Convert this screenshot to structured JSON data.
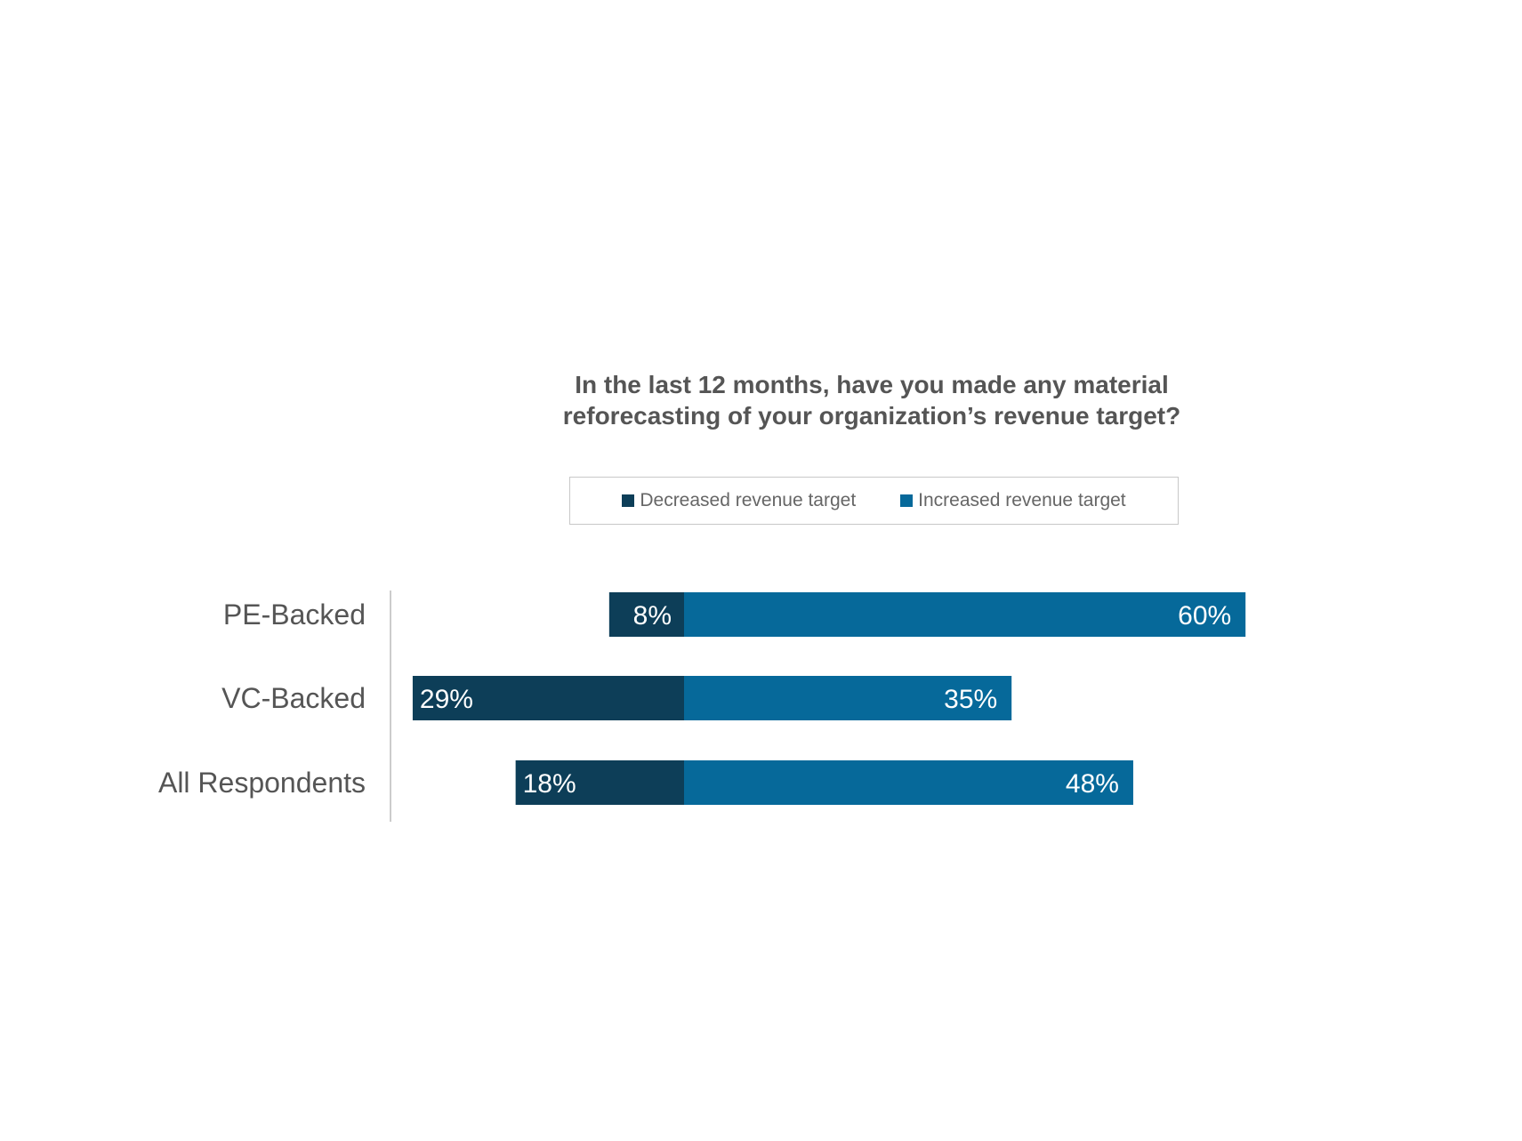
{
  "chart_data": {
    "type": "bar",
    "orientation": "horizontal",
    "stacked": "diverging",
    "title": "In the last 12 months, have you made any material reforecasting of your organization’s revenue target?",
    "title_lines": [
      "In the last 12 months, have you made any material",
      "reforecasting of your organization’s revenue target?"
    ],
    "categories": [
      "PE-Backed",
      "VC-Backed",
      "All Respondents"
    ],
    "series": [
      {
        "name": "Decreased revenue target",
        "values": [
          8,
          29,
          18
        ],
        "color": "#0d3e58",
        "direction": "left"
      },
      {
        "name": "Increased revenue target",
        "values": [
          60,
          35,
          48
        ],
        "color": "#06699a",
        "direction": "right"
      }
    ],
    "value_labels": [
      [
        "8%",
        "60%"
      ],
      [
        "29%",
        "35%"
      ],
      [
        "18%",
        "48%"
      ]
    ],
    "legend_placement": "top",
    "grid": false,
    "xlabel": "",
    "ylabel": ""
  }
}
